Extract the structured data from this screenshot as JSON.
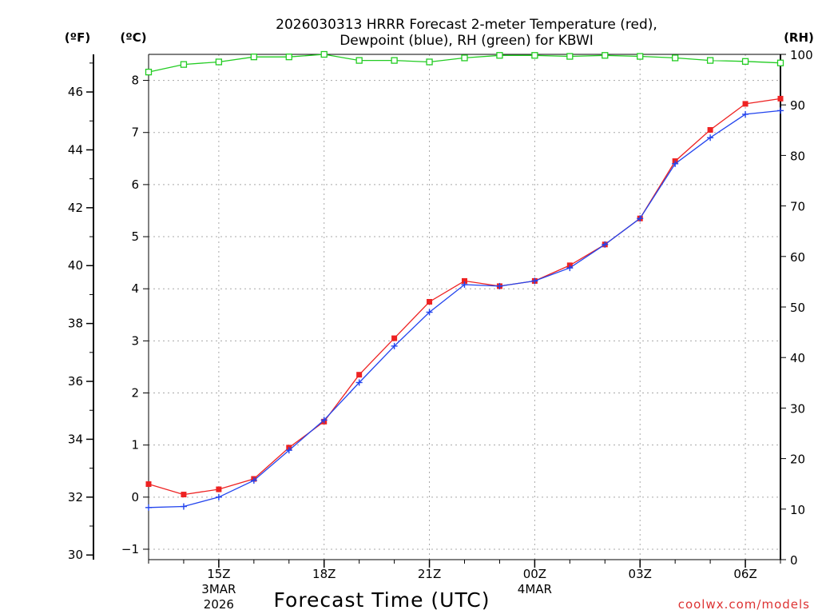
{
  "chart_data": {
    "type": "line",
    "title_line1": "2026030313 HRRR Forecast 2-meter Temperature (red),",
    "title_line2": "Dewpoint (blue), RH (green) for KBWI",
    "units": {
      "fahrenheit": "(ºF)",
      "celsius": "(ºC)",
      "rh": "(RH)"
    },
    "xlabel": "Forecast Time (UTC)",
    "credit": "coolwx.com/models",
    "x_hours": [
      13,
      14,
      15,
      16,
      17,
      18,
      19,
      20,
      21,
      22,
      23,
      24,
      25,
      26,
      27,
      28,
      29,
      30,
      31
    ],
    "x_range": [
      13,
      31
    ],
    "x_ticks": [
      {
        "hour": 15,
        "label": "15Z",
        "date": [
          "3MAR",
          "2026"
        ]
      },
      {
        "hour": 18,
        "label": "18Z",
        "date": []
      },
      {
        "hour": 21,
        "label": "21Z",
        "date": []
      },
      {
        "hour": 24,
        "label": "00Z",
        "date": [
          "4MAR"
        ]
      },
      {
        "hour": 27,
        "label": "03Z",
        "date": []
      },
      {
        "hour": 30,
        "label": "06Z",
        "date": []
      }
    ],
    "celsius_range": [
      -1.2,
      8.5
    ],
    "celsius_ticks": [
      -1,
      0,
      1,
      2,
      3,
      4,
      5,
      6,
      7,
      8
    ],
    "fahrenheit_ticks": [
      30,
      32,
      34,
      36,
      38,
      40,
      42,
      44,
      46
    ],
    "rh_range": [
      0,
      100
    ],
    "rh_ticks": [
      0,
      10,
      20,
      30,
      40,
      50,
      60,
      70,
      80,
      90,
      100
    ],
    "series": [
      {
        "name": "Temperature",
        "unit": "C",
        "color": "#ee2222",
        "marker": "square",
        "values": [
          0.25,
          0.05,
          0.15,
          0.35,
          0.95,
          1.45,
          2.35,
          3.05,
          3.75,
          4.15,
          4.05,
          4.15,
          4.45,
          4.85,
          5.35,
          6.45,
          7.05,
          7.55,
          7.65
        ]
      },
      {
        "name": "Dewpoint",
        "unit": "C",
        "color": "#2244ee",
        "marker": "plus",
        "values": [
          -0.2,
          -0.18,
          0.0,
          0.32,
          0.9,
          1.48,
          2.2,
          2.9,
          3.55,
          4.08,
          4.05,
          4.15,
          4.4,
          4.85,
          5.35,
          6.4,
          6.9,
          7.35,
          7.42
        ]
      },
      {
        "name": "RH",
        "unit": "%",
        "color": "#22cc22",
        "marker": "hollow-square",
        "values": [
          96.5,
          98,
          98.5,
          99.5,
          99.5,
          100,
          98.8,
          98.8,
          98.5,
          99.3,
          99.8,
          99.8,
          99.6,
          99.8,
          99.6,
          99.3,
          98.8,
          98.6,
          98.3
        ]
      }
    ]
  }
}
